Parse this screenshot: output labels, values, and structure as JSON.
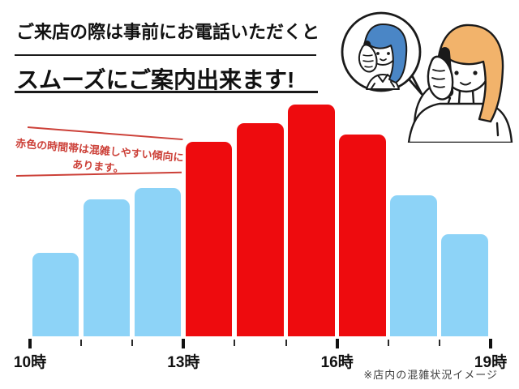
{
  "header": {
    "line1": "ご来店の際は事前にお電話いただくと",
    "line2": "スムーズにご案内出来ます!"
  },
  "annotation": {
    "text_line1": "赤色の時間帯は混雑しやすい傾向に",
    "text_line2": "あります。",
    "color": "#cc4038"
  },
  "illustration": {
    "name": "two-women-phone-call",
    "caller_hair_color": "#f2b36b",
    "operator_hair_color": "#4a86c6",
    "outline_color": "#1a1a1a",
    "phone_color": "#1a1a1a"
  },
  "chart_data": {
    "type": "bar",
    "categories": [
      "10時-11時",
      "11時-12時",
      "12時-13時",
      "13時-14時",
      "14時-15時",
      "15時-16時",
      "16時-17時",
      "17時-18時",
      "18時-19時"
    ],
    "values": [
      36,
      59,
      64,
      84,
      92,
      100,
      87,
      61,
      44
    ],
    "series_colors": [
      "#8dd3f7",
      "#8dd3f7",
      "#8dd3f7",
      "#ee0b0e",
      "#ee0b0e",
      "#ee0b0e",
      "#ee0b0e",
      "#8dd3f7",
      "#8dd3f7"
    ],
    "bar_color_blue": "#8dd3f7",
    "bar_color_red": "#ee0b0e",
    "x_tick_hours": [
      10,
      11,
      12,
      13,
      14,
      15,
      16,
      17,
      18,
      19
    ],
    "x_tick_labels": [
      "10時",
      "13時",
      "16時",
      "19時"
    ],
    "labeled_tick_indices": [
      0,
      3,
      6,
      9
    ],
    "ylim": [
      0,
      100
    ],
    "grid": false,
    "legend": null
  },
  "footnote": "※店内の混雑状況イメージ"
}
